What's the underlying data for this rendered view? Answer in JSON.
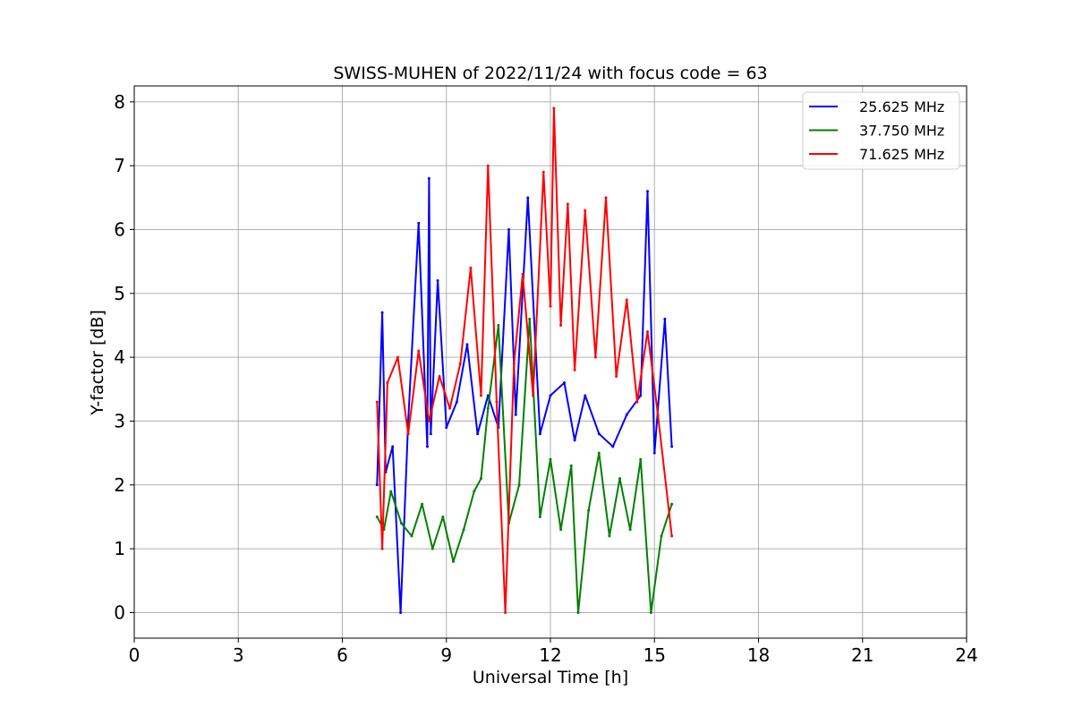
{
  "chart_data": {
    "type": "line",
    "title": "SWISS-MUHEN of 2022/11/24 with focus code = 63",
    "xlabel": "Universal Time [h]",
    "ylabel": "Y-factor [dB]",
    "xlim": [
      0,
      24
    ],
    "ylim": [
      -0.4,
      8.25
    ],
    "xticks": [
      0,
      3,
      6,
      9,
      12,
      15,
      18,
      21,
      24
    ],
    "yticks": [
      0,
      1,
      2,
      3,
      4,
      5,
      6,
      7,
      8
    ],
    "grid": true,
    "legend_position": "top-right",
    "series": [
      {
        "name": "25.625 MHz",
        "color": "#0000ff",
        "x": [
          7.0,
          7.15,
          7.25,
          7.45,
          7.68,
          7.9,
          8.2,
          8.45,
          8.5,
          8.55,
          8.75,
          9.0,
          9.3,
          9.6,
          9.9,
          10.2,
          10.5,
          10.8,
          11.0,
          11.35,
          11.7,
          12.0,
          12.4,
          12.7,
          13.0,
          13.4,
          13.8,
          14.2,
          14.6,
          14.8,
          15.0,
          15.3,
          15.5
        ],
        "y": [
          2.0,
          4.7,
          2.2,
          2.6,
          0.0,
          3.0,
          6.1,
          2.6,
          6.8,
          2.8,
          5.2,
          2.9,
          3.3,
          4.2,
          2.8,
          3.4,
          2.9,
          6.0,
          3.1,
          6.5,
          2.8,
          3.4,
          3.6,
          2.7,
          3.4,
          2.8,
          2.6,
          3.1,
          3.4,
          6.6,
          2.5,
          4.6,
          2.6
        ]
      },
      {
        "name": "37.750 MHz",
        "color": "#008000",
        "x": [
          7.0,
          7.2,
          7.4,
          7.7,
          8.0,
          8.3,
          8.6,
          8.9,
          9.2,
          9.5,
          9.8,
          10.0,
          10.2,
          10.5,
          10.8,
          11.1,
          11.4,
          11.7,
          12.0,
          12.3,
          12.6,
          12.8,
          13.1,
          13.4,
          13.7,
          14.0,
          14.3,
          14.6,
          14.9,
          15.2,
          15.5
        ],
        "y": [
          1.5,
          1.3,
          1.9,
          1.4,
          1.2,
          1.7,
          1.0,
          1.5,
          0.8,
          1.3,
          1.9,
          2.1,
          3.2,
          4.5,
          1.4,
          2.0,
          4.6,
          1.5,
          2.4,
          1.3,
          2.3,
          0.0,
          1.6,
          2.5,
          1.2,
          2.1,
          1.3,
          2.4,
          0.0,
          1.2,
          1.7
        ]
      },
      {
        "name": "71.625 MHz",
        "color": "#ff0000",
        "x": [
          7.0,
          7.15,
          7.3,
          7.6,
          7.9,
          8.2,
          8.5,
          8.8,
          9.1,
          9.4,
          9.7,
          10.0,
          10.2,
          10.45,
          10.7,
          10.95,
          11.2,
          11.5,
          11.8,
          12.0,
          12.1,
          12.3,
          12.5,
          12.7,
          13.0,
          13.3,
          13.6,
          13.9,
          14.2,
          14.5,
          14.8,
          15.1,
          15.5
        ],
        "y": [
          3.3,
          1.0,
          3.6,
          4.0,
          2.8,
          4.1,
          3.0,
          3.7,
          3.2,
          3.9,
          5.4,
          3.4,
          7.0,
          3.3,
          0.0,
          3.9,
          5.3,
          3.4,
          6.9,
          4.8,
          7.9,
          4.5,
          6.4,
          3.8,
          6.3,
          4.0,
          6.5,
          3.7,
          4.9,
          3.3,
          4.4,
          3.1,
          1.2
        ]
      }
    ]
  }
}
